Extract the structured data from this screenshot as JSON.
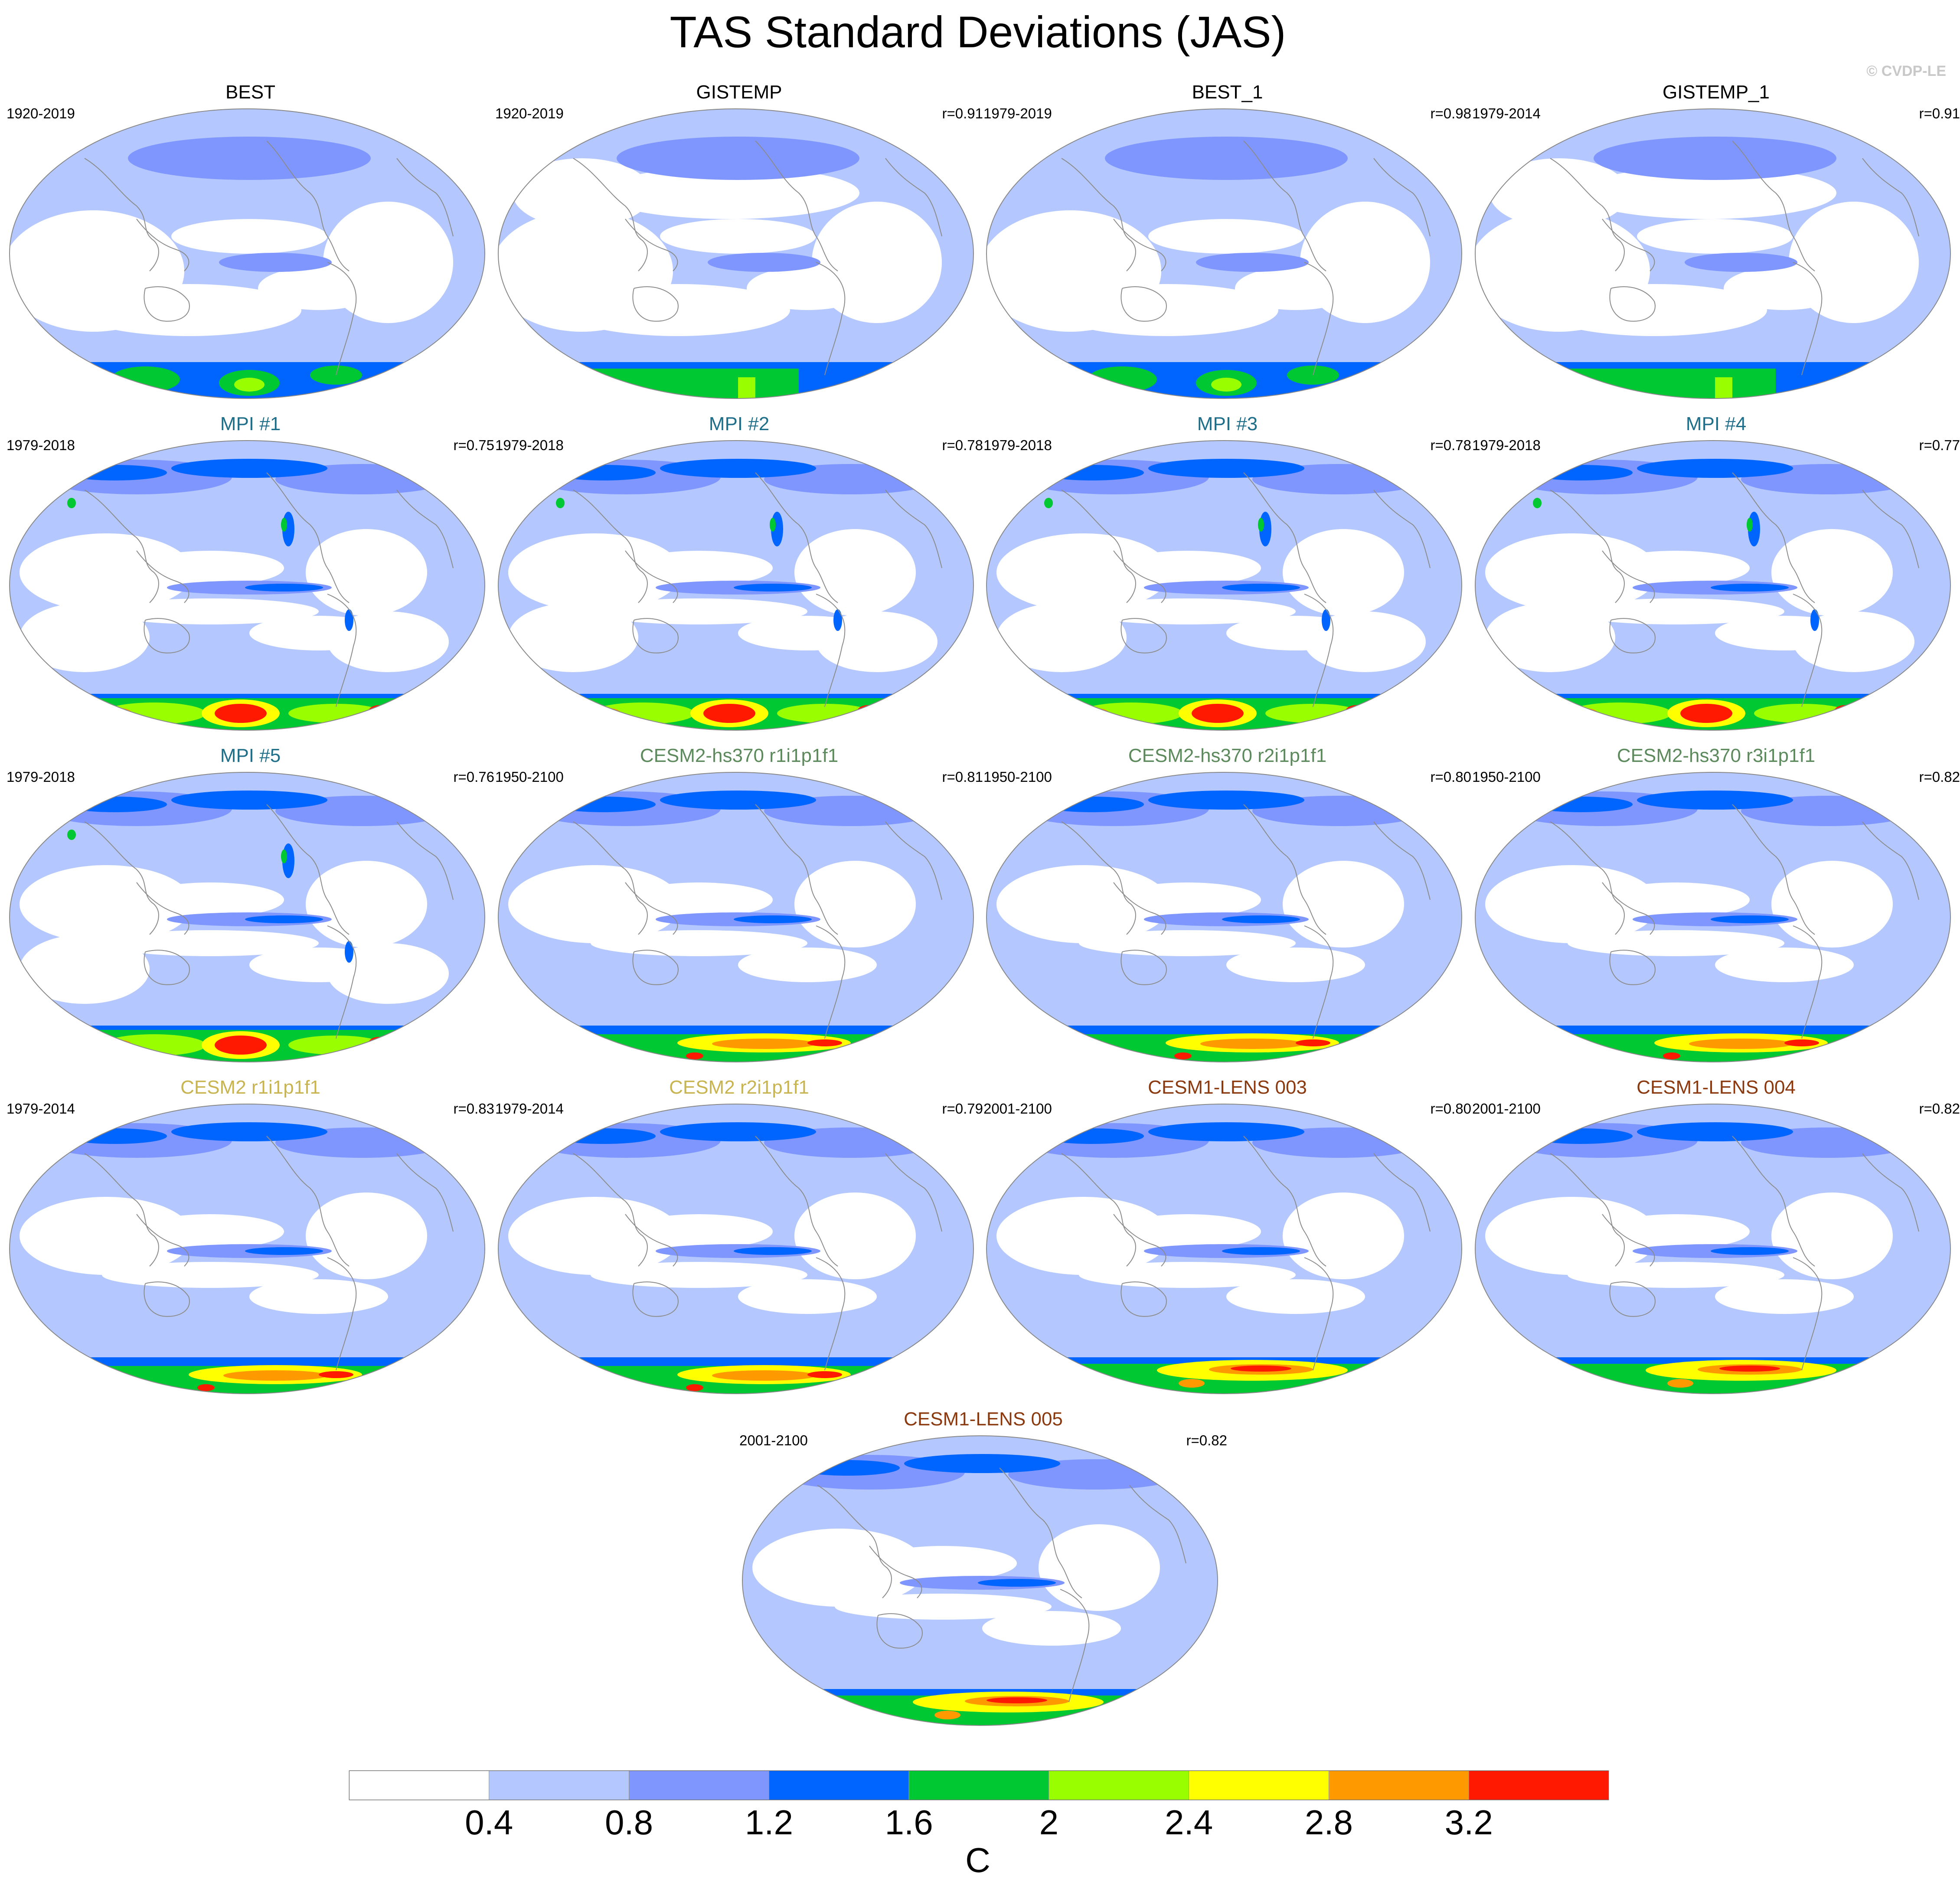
{
  "figure": {
    "title": "TAS Standard Deviations (JAS)",
    "credit": "© CVDP-LE",
    "units": "C"
  },
  "colorbar": {
    "labels": [
      "0.4",
      "0.8",
      "1.2",
      "1.6",
      "2",
      "2.4",
      "2.8",
      "3.2"
    ],
    "colors": [
      "#ffffff",
      "#b4c8ff",
      "#7f96ff",
      "#0064ff",
      "#00c832",
      "#99ff00",
      "#ffff00",
      "#ff9900",
      "#ff1900"
    ]
  },
  "colors": {
    "title_black": "#000000",
    "title_mpi": "#1f6e8a",
    "title_hs370": "#5c8a5c",
    "title_cesm2": "#c8b450",
    "title_lens": "#8b3a0f",
    "coast": "#8c8c8c"
  },
  "panels": [
    {
      "title": "BEST",
      "years": "1920-2019",
      "r": "",
      "title_color": "#000000",
      "style": "obs_best"
    },
    {
      "title": "GISTEMP",
      "years": "1920-2019",
      "r": "r=0.91",
      "title_color": "#000000",
      "style": "obs_gistemp"
    },
    {
      "title": "BEST_1",
      "years": "1979-2019",
      "r": "r=0.98",
      "title_color": "#000000",
      "style": "obs_best"
    },
    {
      "title": "GISTEMP_1",
      "years": "1979-2014",
      "r": "r=0.91",
      "title_color": "#000000",
      "style": "obs_gistemp"
    },
    {
      "title": "MPI #1",
      "years": "1979-2018",
      "r": "r=0.75",
      "title_color": "#1f6e8a",
      "style": "mpi"
    },
    {
      "title": "MPI #2",
      "years": "1979-2018",
      "r": "r=0.78",
      "title_color": "#1f6e8a",
      "style": "mpi"
    },
    {
      "title": "MPI #3",
      "years": "1979-2018",
      "r": "r=0.78",
      "title_color": "#1f6e8a",
      "style": "mpi"
    },
    {
      "title": "MPI #4",
      "years": "1979-2018",
      "r": "r=0.77",
      "title_color": "#1f6e8a",
      "style": "mpi"
    },
    {
      "title": "MPI #5",
      "years": "1979-2018",
      "r": "r=0.76",
      "title_color": "#1f6e8a",
      "style": "mpi"
    },
    {
      "title": "CESM2-hs370 r1i1p1f1",
      "years": "1950-2100",
      "r": "r=0.81",
      "title_color": "#5c8a5c",
      "style": "cesm"
    },
    {
      "title": "CESM2-hs370 r2i1p1f1",
      "years": "1950-2100",
      "r": "r=0.80",
      "title_color": "#5c8a5c",
      "style": "cesm"
    },
    {
      "title": "CESM2-hs370 r3i1p1f1",
      "years": "1950-2100",
      "r": "r=0.82",
      "title_color": "#5c8a5c",
      "style": "cesm"
    },
    {
      "title": "CESM2 r1i1p1f1",
      "years": "1979-2014",
      "r": "r=0.83",
      "title_color": "#c8b450",
      "style": "cesm"
    },
    {
      "title": "CESM2 r2i1p1f1",
      "years": "1979-2014",
      "r": "r=0.79",
      "title_color": "#c8b450",
      "style": "cesm"
    },
    {
      "title": "CESM1-LENS 003",
      "years": "2001-2100",
      "r": "r=0.80",
      "title_color": "#8b3a0f",
      "style": "lens"
    },
    {
      "title": "CESM1-LENS 004",
      "years": "2001-2100",
      "r": "r=0.82",
      "title_color": "#8b3a0f",
      "style": "lens"
    },
    {
      "title": "CESM1-LENS 005",
      "years": "2001-2100",
      "r": "r=0.82",
      "title_color": "#8b3a0f",
      "style": "lens"
    }
  ]
}
